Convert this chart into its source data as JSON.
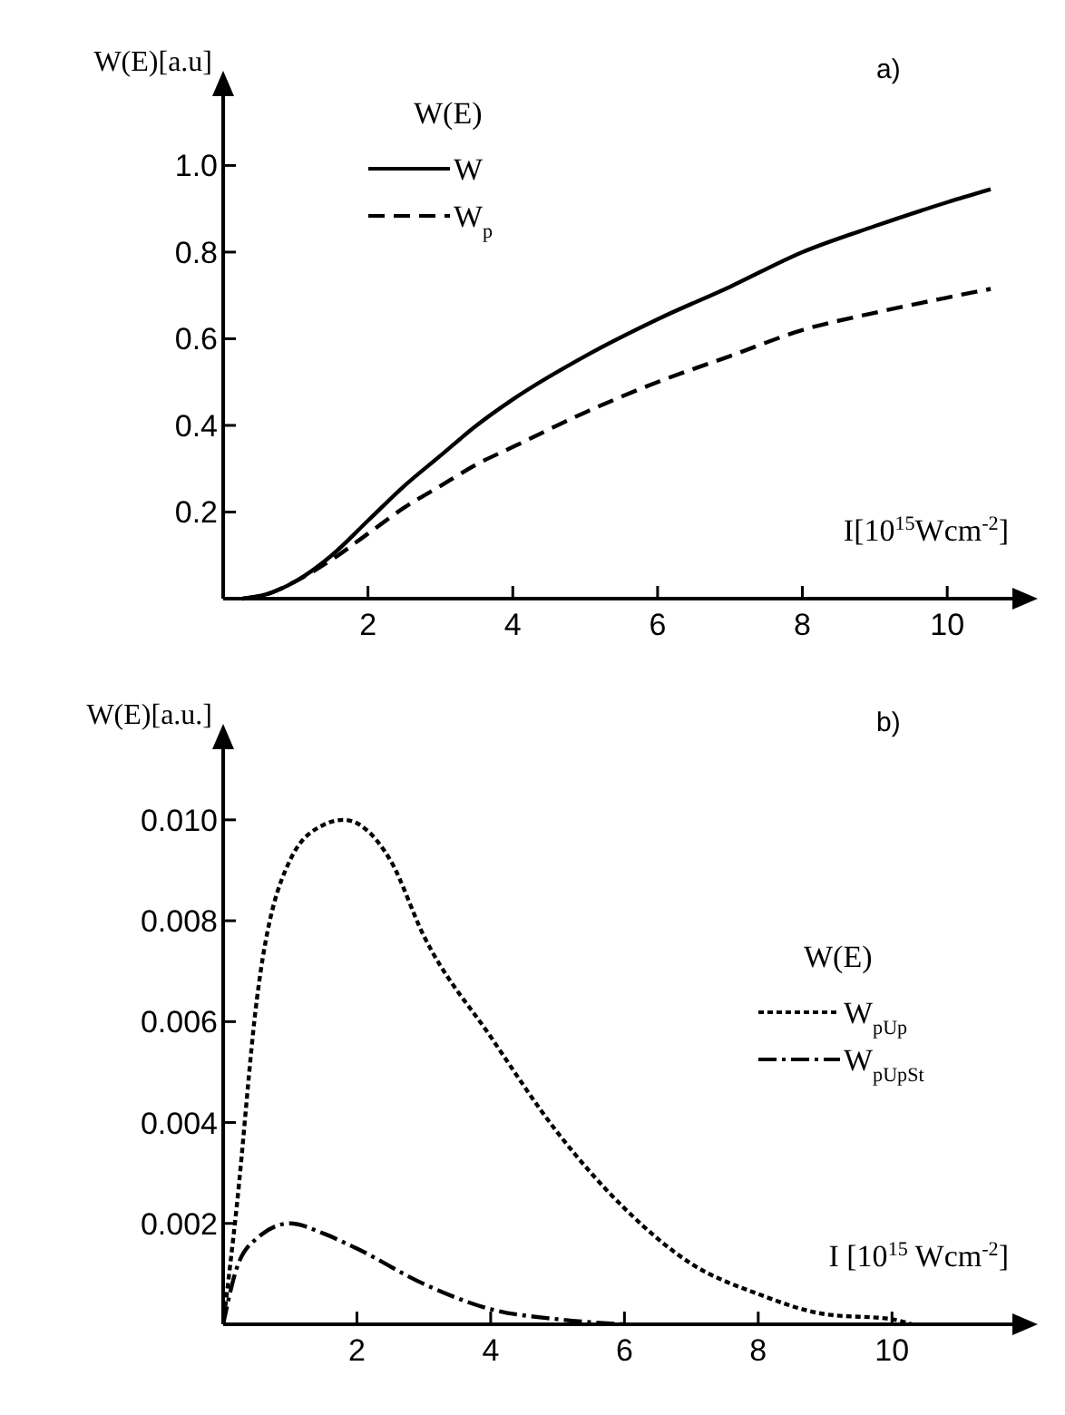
{
  "chart_data": [
    {
      "type": "line",
      "title": "a)",
      "xlabel": "I[10$^{15}$Wcm$^{-2}$]",
      "ylabel": "W(E)[a.u]",
      "legend_title": "W(E)",
      "legend": "top left",
      "grid": false,
      "xlim": [
        0,
        10.9
      ],
      "ylim": [
        0,
        1.16
      ],
      "xticks": [
        {
          "value": 0,
          "label": null
        },
        2,
        4,
        6,
        8,
        10
      ],
      "yticks": [
        0.2,
        0.4,
        0.6,
        0.8,
        {
          "value": 1,
          "label": "1.0"
        }
      ],
      "series": [
        {
          "name": "W",
          "color": "#000000",
          "line_style": "solid",
          "x": [
            0.27,
            0.6,
            1,
            1.5,
            2,
            2.5,
            3,
            3.5,
            4,
            5,
            6,
            7,
            8,
            9,
            10,
            10.6
          ],
          "values": [
            0,
            0.01,
            0.04,
            0.1,
            0.18,
            0.26,
            0.33,
            0.4,
            0.46,
            0.56,
            0.645,
            0.72,
            0.8,
            0.86,
            0.915,
            0.945
          ]
        },
        {
          "name": "W$_{p}$",
          "color": "#000000",
          "line_style": "dashed",
          "x": [
            0.27,
            0.6,
            1,
            1.5,
            2,
            2.5,
            3,
            3.5,
            4,
            5,
            6,
            7,
            8,
            9,
            10,
            10.6
          ],
          "values": [
            0,
            0.01,
            0.04,
            0.09,
            0.15,
            0.21,
            0.26,
            0.31,
            0.35,
            0.43,
            0.5,
            0.56,
            0.62,
            0.66,
            0.695,
            0.715
          ]
        }
      ]
    },
    {
      "type": "line",
      "title": "b)",
      "xlabel": "I [10$^{15}$ Wcm$^{-2}$]",
      "ylabel": "W(E)[a.u.]",
      "legend_title": "W(E)",
      "legend": "right",
      "grid": false,
      "xlim": [
        0,
        11.8
      ],
      "ylim": [
        0,
        0.0114
      ],
      "xticks": [
        {
          "value": 0,
          "label": null
        },
        2,
        4,
        6,
        8,
        10
      ],
      "yticks": [
        {
          "value": 0.002,
          "label": "0.002"
        },
        {
          "value": 0.004,
          "label": "0.004"
        },
        {
          "value": 0.006,
          "label": "0.006"
        },
        {
          "value": 0.008,
          "label": "0.008"
        },
        {
          "value": 0.01,
          "label": "0.010"
        }
      ],
      "series": [
        {
          "name": "W$_{pUp}$",
          "color": "#000000",
          "line_style": "dotted",
          "x": [
            0,
            0.2,
            0.5,
            1,
            1.5,
            1.8,
            2.5,
            3,
            4,
            5,
            6,
            7,
            8,
            9,
            10,
            10.3
          ],
          "values": [
            0,
            0.0023,
            0.0064,
            0.0092,
            0.0099,
            0.01,
            0.0092,
            0.0077,
            0.0057,
            0.0038,
            0.0023,
            0.0012,
            0.0006,
            0.0002,
            0.0001,
            0
          ]
        },
        {
          "name": "W$_{pUpSt}$",
          "color": "#000000",
          "line_style": "dashdot",
          "x": [
            0,
            0.2,
            0.5,
            1,
            1.5,
            2,
            3,
            4,
            5,
            6
          ],
          "values": [
            0,
            0.0011,
            0.0017,
            0.002,
            0.0018,
            0.0015,
            0.0008,
            0.0003,
            0.0001,
            0
          ]
        }
      ]
    }
  ]
}
